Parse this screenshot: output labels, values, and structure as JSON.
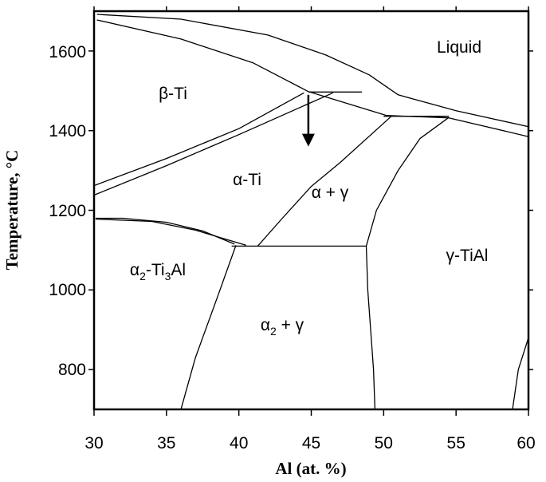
{
  "diagram": {
    "x_axis": {
      "label": "Al (at. %)",
      "ticks": [
        "30",
        "35",
        "40",
        "45",
        "50",
        "55",
        "60"
      ]
    },
    "y_axis": {
      "label": "Temperature, °C",
      "ticks": [
        "800",
        "1000",
        "1200",
        "1400",
        "1600"
      ]
    },
    "regions": {
      "liquid": "Liquid",
      "beta_ti": "β-Ti",
      "alpha_ti": "α-Ti",
      "alpha_gamma": "α + γ",
      "gamma_tial": "γ-TiAl",
      "alpha2_ti3al": {
        "a": "α",
        "s1": "2",
        "b": "-Ti",
        "s2": "3",
        "c": "Al"
      },
      "alpha2_gamma": {
        "a": "α",
        "s1": "2",
        "b": " + γ"
      }
    },
    "arrow": {
      "al_percent": 44.8,
      "from_temp": 1490,
      "to_temp": 1360
    }
  },
  "chart_data": {
    "type": "phase-diagram",
    "xlabel": "Al (at. %)",
    "ylabel": "Temperature, °C",
    "xlim": [
      30,
      60
    ],
    "ylim": [
      700,
      1700
    ],
    "x_ticks": [
      30,
      35,
      40,
      45,
      50,
      55,
      60
    ],
    "y_ticks": [
      800,
      1000,
      1200,
      1400,
      1600
    ],
    "boundaries": [
      {
        "id": "liquidus",
        "points": [
          [
            30.2,
            1692
          ],
          [
            36,
            1680
          ],
          [
            42,
            1640
          ],
          [
            46,
            1590
          ],
          [
            49,
            1540
          ],
          [
            51,
            1490
          ],
          [
            55,
            1450
          ],
          [
            60,
            1410
          ]
        ]
      },
      {
        "id": "beta-solidus",
        "points": [
          [
            30.2,
            1678
          ],
          [
            36,
            1630
          ],
          [
            41,
            1570
          ],
          [
            44.8,
            1498
          ]
        ]
      },
      {
        "id": "peritectic-upper-right",
        "points": [
          [
            44.8,
            1498
          ],
          [
            50.2,
            1438
          ],
          [
            54.5,
            1432
          ],
          [
            60,
            1385
          ]
        ]
      },
      {
        "id": "peritectic-line-1490",
        "points": [
          [
            44.8,
            1497
          ],
          [
            48.5,
            1497
          ]
        ]
      },
      {
        "id": "beta-transus",
        "points": [
          [
            30,
            1262
          ],
          [
            35,
            1330
          ],
          [
            40,
            1405
          ],
          [
            44.5,
            1495
          ]
        ]
      },
      {
        "id": "alpha-beta-lower",
        "points": [
          [
            30,
            1238
          ],
          [
            35,
            1312
          ],
          [
            40,
            1390
          ],
          [
            46.5,
            1495
          ]
        ]
      },
      {
        "id": "alpha-alpha-gamma",
        "points": [
          [
            41.3,
            1110
          ],
          [
            43,
            1180
          ],
          [
            45,
            1260
          ],
          [
            47,
            1320
          ],
          [
            50.5,
            1435
          ]
        ]
      },
      {
        "id": "peritectic-line-1440",
        "points": [
          [
            50,
            1436
          ],
          [
            54.5,
            1436
          ]
        ]
      },
      {
        "id": "gamma-upper-left",
        "points": [
          [
            48.8,
            1110
          ],
          [
            49.5,
            1200
          ],
          [
            51,
            1300
          ],
          [
            52.5,
            1380
          ],
          [
            54.5,
            1433
          ]
        ]
      },
      {
        "id": "eutectoid-line-1110",
        "points": [
          [
            39.5,
            1110
          ],
          [
            48.8,
            1110
          ]
        ]
      },
      {
        "id": "alpha2-top",
        "points": [
          [
            30.1,
            1180
          ],
          [
            32,
            1180
          ],
          [
            35,
            1170
          ],
          [
            37.5,
            1148
          ],
          [
            39.7,
            1115
          ]
        ]
      },
      {
        "id": "alpha2-top-inner",
        "points": [
          [
            30.1,
            1178
          ],
          [
            34,
            1172
          ],
          [
            37,
            1150
          ],
          [
            40.5,
            1112
          ]
        ]
      },
      {
        "id": "alpha2-solvus",
        "points": [
          [
            39.8,
            1112
          ],
          [
            38.5,
            980
          ],
          [
            37,
            830
          ],
          [
            36,
            700
          ]
        ]
      },
      {
        "id": "gamma-solvus-left",
        "points": [
          [
            48.8,
            1110
          ],
          [
            48.9,
            1000
          ],
          [
            49.1,
            900
          ],
          [
            49.3,
            800
          ],
          [
            49.4,
            700
          ]
        ]
      },
      {
        "id": "gamma-right-edge",
        "points": [
          [
            58.9,
            700
          ],
          [
            59.3,
            800
          ],
          [
            60,
            880
          ]
        ]
      }
    ]
  }
}
